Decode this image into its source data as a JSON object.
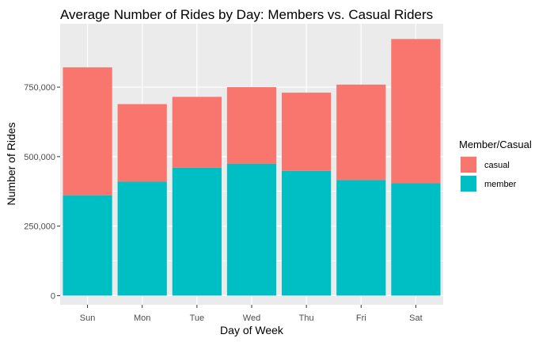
{
  "chart_data": {
    "type": "bar",
    "stacked": true,
    "title": "Average Number of Rides by Day: Members vs. Casual Riders",
    "xlabel": "Day of Week",
    "ylabel": "Number of Rides",
    "categories": [
      "Sun",
      "Mon",
      "Tue",
      "Wed",
      "Thu",
      "Fri",
      "Sat"
    ],
    "series": [
      {
        "name": "member",
        "color": "#00BFC4",
        "values": [
          361000,
          410000,
          460000,
          474000,
          449000,
          416000,
          404000
        ]
      },
      {
        "name": "casual",
        "color": "#F8766D",
        "values": [
          460000,
          279000,
          255000,
          276000,
          281000,
          343000,
          519000
        ]
      }
    ],
    "ylim": [
      -33000,
      978000
    ],
    "yticks": [
      0,
      250000,
      500000,
      750000
    ],
    "ytick_labels": [
      "0",
      "250,000",
      "500,000",
      "750,000"
    ],
    "grid": true,
    "panel_background": "#EBEBEB",
    "legend": {
      "title": "Member/Casual",
      "position": "right",
      "entries": [
        {
          "label": "casual",
          "color": "#F8766D"
        },
        {
          "label": "member",
          "color": "#00BFC4"
        }
      ]
    }
  }
}
